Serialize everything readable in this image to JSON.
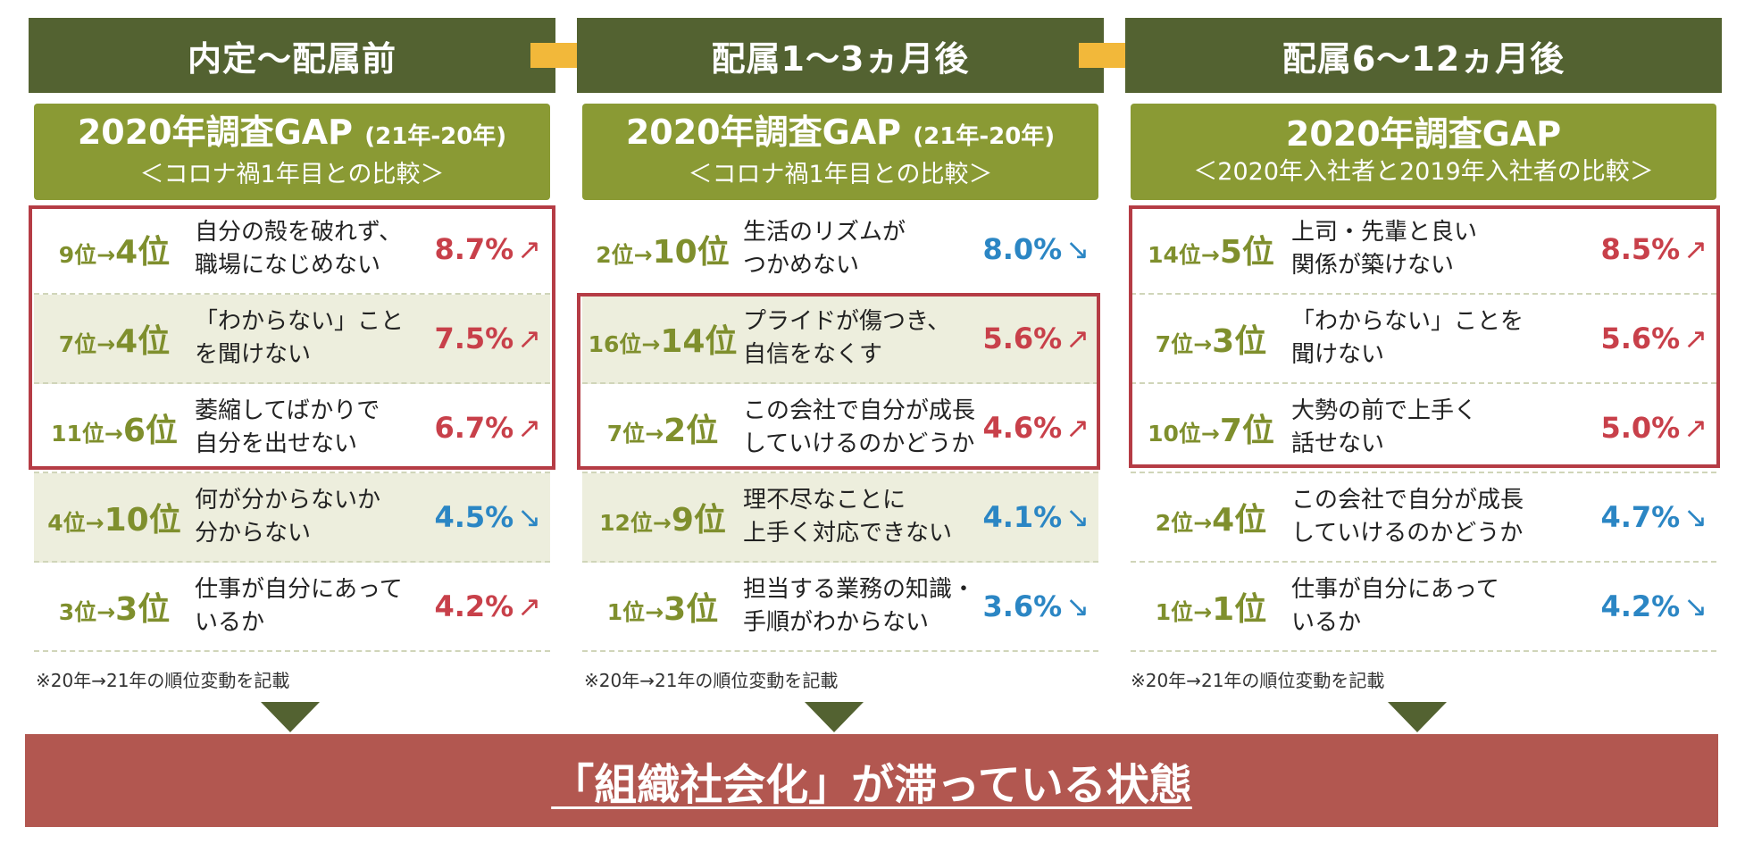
{
  "stages": [
    {
      "header": "内定～配属前",
      "survey_title": "2020年調査GAP",
      "survey_title_suffix": "(21年-20年)",
      "survey_subtitle": "＜コロナ禍1年目との比較＞",
      "rows": [
        {
          "from": "9位",
          "to": "4位",
          "line1": "自分の殻を破れず、",
          "line2": "職場になじめない",
          "value": "8.7%",
          "trend": "↗"
        },
        {
          "from": "7位",
          "to": "4位",
          "line1": "「わからない」こと",
          "line2": "を聞けない",
          "value": "7.5%",
          "trend": "↗"
        },
        {
          "from": "11位",
          "to": "6位",
          "line1": "萎縮してばかりで",
          "line2": "自分を出せない",
          "value": "6.7%",
          "trend": "↗"
        },
        {
          "from": "4位",
          "to": "10位",
          "line1": "何が分からないか",
          "line2": "分からない",
          "value": "4.5%",
          "trend": "↘"
        },
        {
          "from": "3位",
          "to": "3位",
          "line1": "仕事が自分にあって",
          "line2": "いるか",
          "value": "4.2%",
          "trend": "↗"
        }
      ],
      "note": "※20年→21年の順位変動を記載"
    },
    {
      "header": "配属1～3ヵ月後",
      "survey_title": "2020年調査GAP",
      "survey_title_suffix": "(21年-20年)",
      "survey_subtitle": "＜コロナ禍1年目との比較＞",
      "rows": [
        {
          "from": "2位",
          "to": "10位",
          "line1": "生活のリズムが",
          "line2": "つかめない",
          "value": "8.0%",
          "trend": "↘"
        },
        {
          "from": "16位",
          "to": "14位",
          "line1": "プライドが傷つき、",
          "line2": "自信をなくす",
          "value": "5.6%",
          "trend": "↗"
        },
        {
          "from": "7位",
          "to": "2位",
          "line1": "この会社で自分が成長",
          "line2": "していけるのかどうか",
          "value": "4.6%",
          "trend": "↗"
        },
        {
          "from": "12位",
          "to": "9位",
          "line1": "理不尽なことに",
          "line2": "上手く対応できない",
          "value": "4.1%",
          "trend": "↘"
        },
        {
          "from": "1位",
          "to": "3位",
          "line1": "担当する業務の知識・",
          "line2": "手順がわからない",
          "value": "3.6%",
          "trend": "↘"
        }
      ],
      "note": "※20年→21年の順位変動を記載"
    },
    {
      "header": "配属6～12ヵ月後",
      "survey_title": "2020年調査GAP",
      "survey_title_suffix": "",
      "survey_subtitle": "＜2020年入社者と2019年入社者の比較＞",
      "rows": [
        {
          "from": "14位",
          "to": "5位",
          "line1": "上司・先輩と良い",
          "line2": "関係が築けない",
          "value": "8.5%",
          "trend": "↗"
        },
        {
          "from": "7位",
          "to": "3位",
          "line1": "「わからない」ことを",
          "line2": "聞けない",
          "value": "5.6%",
          "trend": "↗"
        },
        {
          "from": "10位",
          "to": "7位",
          "line1": "大勢の前で上手く",
          "line2": "話せない",
          "value": "5.0%",
          "trend": "↗"
        },
        {
          "from": "2位",
          "to": "4位",
          "line1": "この会社で自分が成長",
          "line2": "していけるのかどうか",
          "value": "4.7%",
          "trend": "↘"
        },
        {
          "from": "1位",
          "to": "1位",
          "line1": "仕事が自分にあって",
          "line2": "いるか",
          "value": "4.2%",
          "trend": "↘"
        }
      ],
      "note": "※20年→21年の順位変動を記載"
    }
  ],
  "rank_arrow": "→",
  "conclusion": "「組織社会化」が滞っている状態",
  "colors": {
    "header_bg": "#536231",
    "survey_bg": "#8a9a34",
    "rank_text": "#7f8f2d",
    "up": "#c8404a",
    "down": "#2b86c4",
    "highlight_border": "#b53c45",
    "conclusion_bg": "#b25750",
    "arrow": "#f2b83a"
  }
}
